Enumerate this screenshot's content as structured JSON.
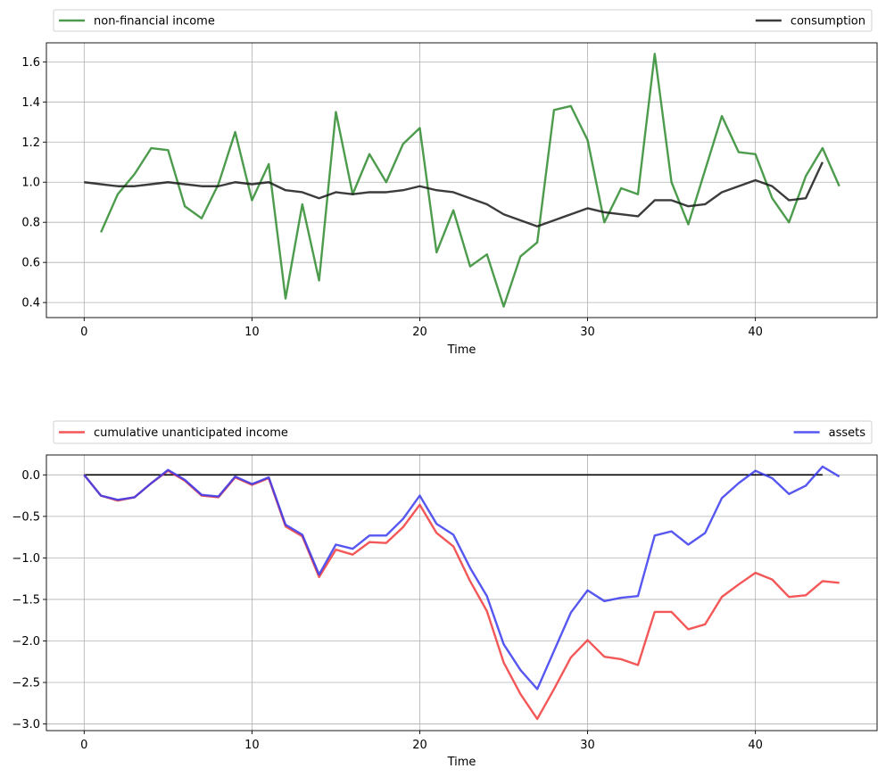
{
  "chart_data": [
    {
      "type": "line",
      "xlabel": "Time",
      "ylabel": "",
      "xlim": [
        -2.25,
        47.25
      ],
      "ylim": [
        0.325,
        1.695
      ],
      "xticks": [
        0,
        10,
        20,
        30,
        40
      ],
      "yticks": [
        0.4,
        0.6,
        0.8,
        1.0,
        1.2,
        1.4,
        1.6
      ],
      "ytick_labels": [
        "0.4",
        "0.6",
        "0.8",
        "1.0",
        "1.2",
        "1.4",
        "1.6"
      ],
      "grid": true,
      "legend": "above, spanning full width, two entries at left and right",
      "series": [
        {
          "name": "non-financial income",
          "color": "#2e8b2e",
          "x_start": 1,
          "values": [
            0.75,
            0.94,
            1.04,
            1.17,
            1.16,
            0.88,
            0.82,
            0.99,
            1.25,
            0.91,
            1.09,
            0.42,
            0.89,
            0.51,
            1.35,
            0.94,
            1.14,
            1.0,
            1.19,
            1.27,
            0.65,
            0.86,
            0.58,
            0.64,
            0.38,
            0.63,
            0.7,
            1.36,
            1.38,
            1.21,
            0.8,
            0.97,
            0.94,
            1.64,
            1.0,
            0.79,
            1.06,
            1.33,
            1.15,
            1.14,
            0.92,
            0.8,
            1.03,
            1.17,
            0.98
          ]
        },
        {
          "name": "consumption",
          "color": "#1a1a1a",
          "x_start": 0,
          "values": [
            1.0,
            0.99,
            0.98,
            0.98,
            0.99,
            1.0,
            0.99,
            0.98,
            0.98,
            1.0,
            0.99,
            1.0,
            0.96,
            0.95,
            0.92,
            0.95,
            0.94,
            0.95,
            0.95,
            0.96,
            0.98,
            0.96,
            0.95,
            0.92,
            0.89,
            0.84,
            0.81,
            0.78,
            0.81,
            0.84,
            0.87,
            0.85,
            0.84,
            0.83,
            0.91,
            0.91,
            0.88,
            0.89,
            0.95,
            0.98,
            1.01,
            0.98,
            0.91,
            0.92,
            1.1
          ]
        }
      ]
    },
    {
      "type": "line",
      "xlabel": "Time",
      "ylabel": "",
      "xlim": [
        -2.25,
        47.25
      ],
      "ylim": [
        -3.08,
        0.24
      ],
      "xticks": [
        0,
        10,
        20,
        30,
        40
      ],
      "yticks": [
        -3.0,
        -2.5,
        -2.0,
        -1.5,
        -1.0,
        -0.5,
        0.0
      ],
      "ytick_labels": [
        "−3.0",
        "−2.5",
        "−2.0",
        "−1.5",
        "−1.0",
        "−0.5",
        "0.0"
      ],
      "grid": true,
      "legend": "above, spanning full width, two entries at left and right",
      "hline": {
        "y": 0,
        "x_from": 0,
        "x_to": 44,
        "color": "#000000"
      },
      "series": [
        {
          "name": "cumulative unanticipated income",
          "color": "#f23a3a",
          "x_start": 0,
          "values": [
            0.0,
            -0.25,
            -0.31,
            -0.27,
            -0.1,
            0.05,
            -0.07,
            -0.25,
            -0.27,
            -0.03,
            -0.12,
            -0.04,
            -0.62,
            -0.74,
            -1.23,
            -0.9,
            -0.96,
            -0.81,
            -0.82,
            -0.63,
            -0.36,
            -0.7,
            -0.86,
            -1.28,
            -1.64,
            -2.26,
            -2.64,
            -2.94,
            -2.58,
            -2.2,
            -1.99,
            -2.19,
            -2.22,
            -2.29,
            -1.65,
            -1.65,
            -1.86,
            -1.8,
            -1.47,
            -1.32,
            -1.18,
            -1.26,
            -1.47,
            -1.45,
            -1.28,
            -1.3
          ]
        },
        {
          "name": "assets",
          "color": "#3a3aee",
          "x_start": 0,
          "values": [
            0.0,
            -0.25,
            -0.3,
            -0.27,
            -0.1,
            0.06,
            -0.06,
            -0.24,
            -0.26,
            -0.02,
            -0.11,
            -0.03,
            -0.6,
            -0.72,
            -1.2,
            -0.84,
            -0.89,
            -0.73,
            -0.73,
            -0.53,
            -0.25,
            -0.59,
            -0.72,
            -1.12,
            -1.46,
            -2.04,
            -2.35,
            -2.58,
            -2.12,
            -1.66,
            -1.39,
            -1.52,
            -1.48,
            -1.46,
            -0.73,
            -0.68,
            -0.84,
            -0.7,
            -0.28,
            -0.1,
            0.05,
            -0.04,
            -0.23,
            -0.13,
            0.1,
            -0.02
          ]
        }
      ]
    }
  ]
}
